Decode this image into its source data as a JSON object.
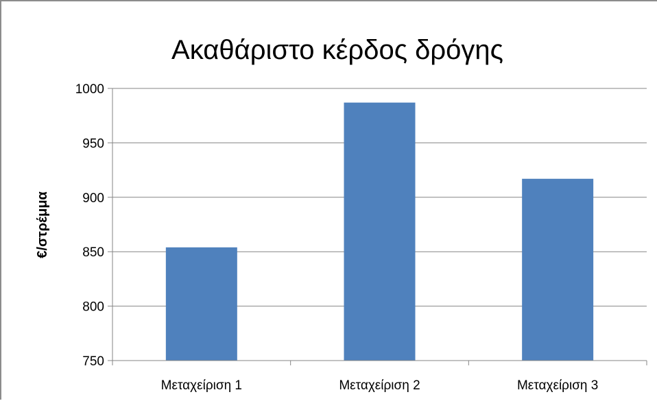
{
  "chart_data": {
    "type": "bar",
    "title": "Ακαθάριστο κέρδος δρόγης",
    "xlabel": "",
    "ylabel": "€/στρέμμα",
    "categories": [
      "Μεταχείριση 1",
      "Μεταχείριση 2",
      "Μεταχείριση 3"
    ],
    "values": [
      854,
      987,
      917
    ],
    "ylim": [
      750,
      1000
    ],
    "yticks": [
      750,
      800,
      850,
      900,
      950,
      1000
    ],
    "grid": true,
    "legend": "none",
    "colors": {
      "bar": "#4f81bd",
      "grid": "#868686",
      "axis": "#868686",
      "border": "#8c8c8c"
    }
  }
}
